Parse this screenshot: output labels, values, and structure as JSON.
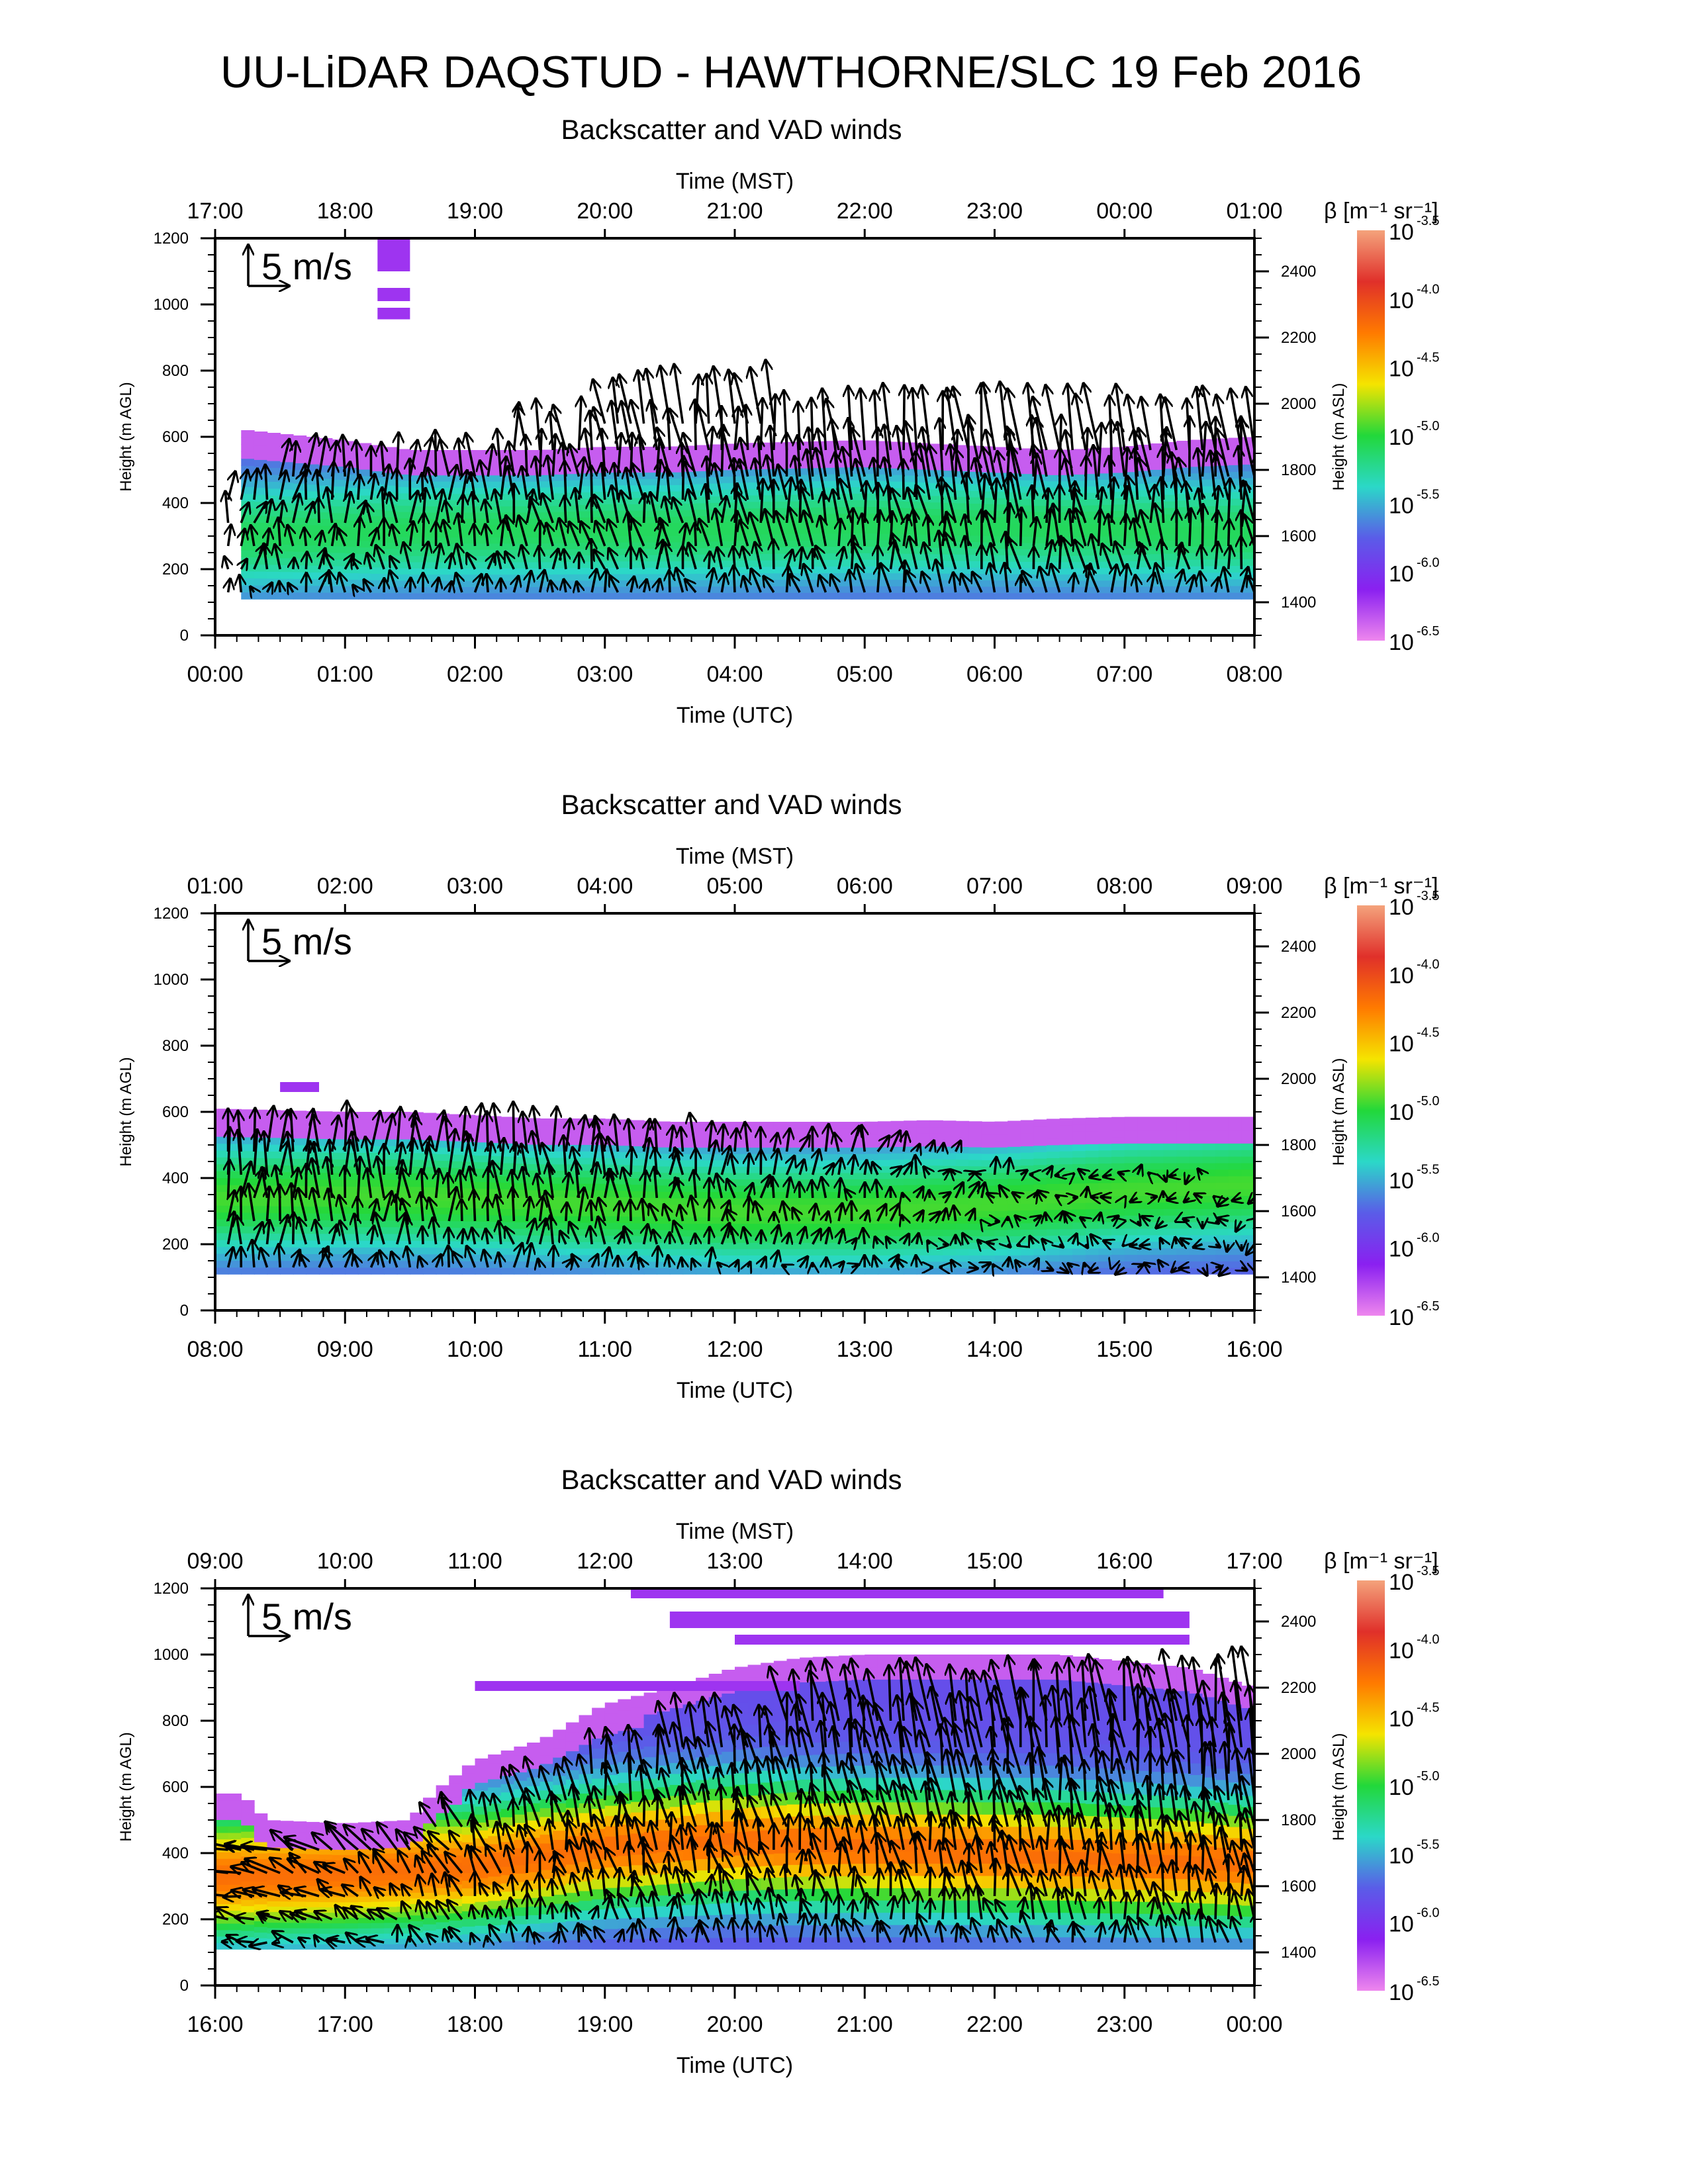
{
  "figure": {
    "title": "UU-LiDAR DAQSTUD - HAWTHORNE/SLC 19 Feb 2016"
  },
  "colorbar": {
    "label": "β [m⁻¹ sr⁻¹]",
    "ticks": [
      {
        "base": "10",
        "exp": "-3.5"
      },
      {
        "base": "10",
        "exp": "-4.0"
      },
      {
        "base": "10",
        "exp": "-4.5"
      },
      {
        "base": "10",
        "exp": "-5.0"
      },
      {
        "base": "10",
        "exp": "-5.5"
      },
      {
        "base": "10",
        "exp": "-6.0"
      },
      {
        "base": "10",
        "exp": "-6.5"
      }
    ],
    "colors": [
      "#f4a37c",
      "#e0302a",
      "#ff7a00",
      "#f5e400",
      "#22d83a",
      "#2bd8c8",
      "#5a5ce8",
      "#8a20f0",
      "#ee86ee"
    ]
  },
  "reference_vector": {
    "label": "5 m/s",
    "speed_ms": 5
  },
  "chart_data": [
    {
      "type": "heatmap",
      "title": "Backscatter and VAD winds",
      "xlabel_bottom": "Time (UTC)",
      "xlabel_top": "Time (MST)",
      "ylabel_left": "Height (m AGL)",
      "ylabel_right": "Height (m ASL)",
      "x_ticks_utc": [
        "00:00",
        "01:00",
        "02:00",
        "03:00",
        "04:00",
        "05:00",
        "06:00",
        "07:00",
        "08:00"
      ],
      "x_ticks_mst": [
        "17:00",
        "18:00",
        "19:00",
        "20:00",
        "21:00",
        "22:00",
        "23:00",
        "00:00",
        "01:00"
      ],
      "y_ticks_left": [
        "0",
        "200",
        "400",
        "600",
        "800",
        "1000",
        "1200"
      ],
      "y_ticks_right": [
        "1400",
        "1600",
        "1800",
        "2000",
        "2200",
        "2400"
      ],
      "ylim_agl": [
        0,
        1200
      ],
      "xlim_hours": [
        0,
        8
      ],
      "data_bottom_m": 110,
      "top_profile": {
        "t": [
          0.25,
          0.5,
          1.0,
          1.5,
          2.0,
          2.5,
          3.0,
          3.5,
          4.0,
          4.5,
          5.0,
          5.5,
          6.0,
          6.5,
          7.0,
          7.5,
          8.0
        ],
        "h": [
          620,
          610,
          590,
          560,
          560,
          560,
          570,
          570,
          580,
          585,
          590,
          580,
          570,
          560,
          570,
          590,
          600
        ]
      },
      "strong_layer": {
        "t": [
          0.25,
          1.0,
          2.0,
          3.0,
          4.0,
          5.0,
          6.0,
          7.0,
          8.0
        ],
        "h": [
          300,
          310,
          320,
          320,
          320,
          330,
          330,
          320,
          310
        ],
        "level": 0.25
      },
      "aloft_patches": [
        {
          "t0": 1.25,
          "t1": 1.5,
          "h0": 1100,
          "h1": 1200
        },
        {
          "t0": 1.25,
          "t1": 1.5,
          "h0": 1010,
          "h1": 1050
        },
        {
          "t0": 1.25,
          "t1": 1.5,
          "h0": 955,
          "h1": 990
        }
      ],
      "winds": {
        "t_start": 0.1,
        "t_end": 8.0,
        "dt": 0.1,
        "levels": [
          130,
          200,
          270,
          340,
          410,
          480,
          560,
          640
        ],
        "u": [
          0.5,
          -0.3,
          -0.6,
          -0.4
        ],
        "v": [
          3.0,
          4.5,
          6.0,
          5.5
        ],
        "top_h": [
          450,
          520,
          560,
          690,
          630,
          580,
          560,
          560
        ]
      }
    },
    {
      "type": "heatmap",
      "title": "Backscatter and VAD winds",
      "xlabel_bottom": "Time (UTC)",
      "xlabel_top": "Time (MST)",
      "ylabel_left": "Height (m AGL)",
      "ylabel_right": "Height (m ASL)",
      "x_ticks_utc": [
        "08:00",
        "09:00",
        "10:00",
        "11:00",
        "12:00",
        "13:00",
        "14:00",
        "15:00",
        "16:00"
      ],
      "x_ticks_mst": [
        "01:00",
        "02:00",
        "03:00",
        "04:00",
        "05:00",
        "06:00",
        "07:00",
        "08:00",
        "09:00"
      ],
      "y_ticks_left": [
        "0",
        "200",
        "400",
        "600",
        "800",
        "1000",
        "1200"
      ],
      "y_ticks_right": [
        "1400",
        "1600",
        "1800",
        "2000",
        "2200",
        "2400"
      ],
      "ylim_agl": [
        0,
        1200
      ],
      "xlim_hours": [
        8,
        16
      ],
      "data_bottom_m": 110,
      "top_profile": {
        "t": [
          8.0,
          8.5,
          9.0,
          9.5,
          10.0,
          10.5,
          11.0,
          11.5,
          12.0,
          12.5,
          13.0,
          13.5,
          14.0,
          14.5,
          15.0,
          15.5,
          16.0
        ],
        "h": [
          610,
          605,
          600,
          600,
          590,
          580,
          580,
          570,
          570,
          570,
          570,
          575,
          570,
          580,
          585,
          585,
          585
        ]
      },
      "strong_layer": {
        "t": [
          8.0,
          9.0,
          10.0,
          11.0,
          12.0,
          13.0,
          14.0,
          15.0,
          16.0
        ],
        "h": [
          340,
          350,
          340,
          320,
          300,
          300,
          320,
          360,
          380
        ],
        "level": 0.3
      },
      "aloft_patches": [
        {
          "t0": 8.5,
          "t1": 8.8,
          "h0": 660,
          "h1": 690
        }
      ],
      "winds": {
        "t_start": 8.1,
        "t_end": 16.0,
        "dt": 0.1,
        "levels": [
          130,
          200,
          270,
          340,
          410,
          480
        ],
        "u": [
          0.2,
          -0.2,
          0.3,
          -0.5
        ],
        "v": [
          5.0,
          4.0,
          1.5,
          -0.5
        ],
        "top_h": [
          560,
          560,
          500,
          500,
          490,
          480,
          430,
          400
        ]
      }
    },
    {
      "type": "heatmap",
      "title": "Backscatter and VAD winds",
      "xlabel_bottom": "Time (UTC)",
      "xlabel_top": "Time (MST)",
      "ylabel_left": "Height (m AGL)",
      "ylabel_right": "Height (m ASL)",
      "x_ticks_utc": [
        "16:00",
        "17:00",
        "18:00",
        "19:00",
        "20:00",
        "21:00",
        "22:00",
        "23:00",
        "00:00"
      ],
      "x_ticks_mst": [
        "09:00",
        "10:00",
        "11:00",
        "12:00",
        "13:00",
        "14:00",
        "15:00",
        "16:00",
        "17:00"
      ],
      "y_ticks_left": [
        "0",
        "200",
        "400",
        "600",
        "800",
        "1000",
        "1200"
      ],
      "y_ticks_right": [
        "1400",
        "1600",
        "1800",
        "2000",
        "2200",
        "2400"
      ],
      "ylim_agl": [
        0,
        1200
      ],
      "xlim_hours": [
        16,
        24
      ],
      "data_bottom_m": 110,
      "top_profile": {
        "t": [
          16.0,
          16.2,
          16.4,
          17.0,
          17.5,
          17.7,
          18.0,
          18.5,
          19.0,
          19.5,
          20.0,
          20.5,
          21.0,
          21.5,
          22.0,
          22.5,
          23.0,
          23.5,
          24.0
        ],
        "h": [
          580,
          580,
          500,
          490,
          500,
          590,
          680,
          740,
          850,
          900,
          960,
          990,
          1000,
          1000,
          1000,
          1000,
          980,
          960,
          900
        ]
      },
      "strong_layer": {
        "t": [
          16.0,
          17.0,
          18.0,
          19.0,
          20.0,
          21.0,
          22.0,
          23.0,
          24.0
        ],
        "h": [
          330,
          340,
          360,
          420,
          440,
          420,
          400,
          380,
          370
        ],
        "level": 0.55
      },
      "aloft_patches": [
        {
          "t0": 19.2,
          "t1": 23.3,
          "h0": 1170,
          "h1": 1210
        },
        {
          "t0": 19.5,
          "t1": 23.5,
          "h0": 1080,
          "h1": 1130
        },
        {
          "t0": 20.0,
          "t1": 23.5,
          "h0": 1030,
          "h1": 1060
        },
        {
          "t0": 18.0,
          "t1": 20.5,
          "h0": 890,
          "h1": 920
        }
      ],
      "winds": {
        "t_start": 16.1,
        "t_end": 24.0,
        "dt": 0.1,
        "levels": [
          130,
          200,
          270,
          340,
          410,
          480,
          560,
          640,
          720,
          800
        ],
        "u": [
          -3.0,
          -0.5,
          -0.8,
          -0.6
        ],
        "v": [
          0.5,
          4.0,
          5.5,
          6.5
        ],
        "top_h": [
          420,
          420,
          560,
          720,
          820,
          880,
          880,
          850
        ]
      }
    }
  ]
}
